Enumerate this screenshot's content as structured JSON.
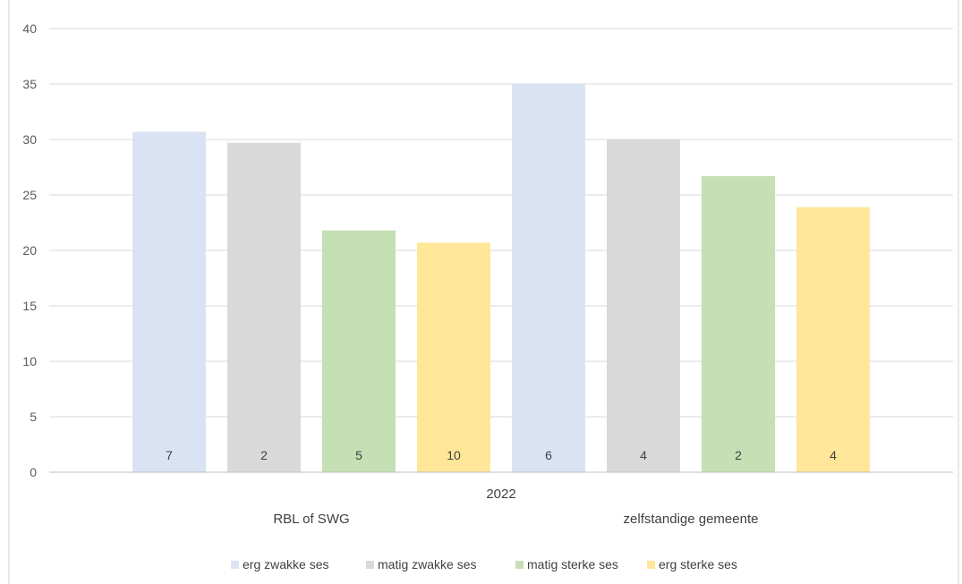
{
  "chart_data": {
    "type": "bar",
    "title": "",
    "xlabel": "",
    "ylabel": "",
    "ylim": [
      0,
      40
    ],
    "yticks": [
      0,
      5,
      10,
      15,
      20,
      25,
      30,
      35,
      40
    ],
    "grid": true,
    "legend_position": "bottom",
    "year_label": "2022",
    "groups": [
      "RBL of SWG",
      "zelfstandige gemeente"
    ],
    "series": [
      {
        "name": "erg zwakke ses",
        "color": "#dae3f3",
        "values": [
          30.7,
          35.0
        ],
        "labels": [
          "7",
          "6"
        ]
      },
      {
        "name": "matig zwakke ses",
        "color": "#d9d9d9",
        "values": [
          29.7,
          30.0
        ],
        "labels": [
          "2",
          "4"
        ]
      },
      {
        "name": "matig sterke ses",
        "color": "#c5e0b4",
        "values": [
          21.8,
          26.7
        ],
        "labels": [
          "5",
          "2"
        ]
      },
      {
        "name": "erg sterke ses",
        "color": "#ffe699",
        "values": [
          20.7,
          23.9
        ],
        "labels": [
          "10",
          "4"
        ]
      }
    ]
  }
}
